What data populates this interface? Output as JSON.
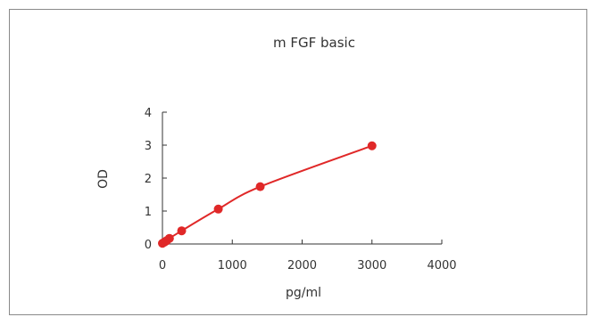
{
  "chart_data": {
    "type": "scatter",
    "title": "m FGF basic",
    "xlabel": "pg/ml",
    "ylabel": "OD",
    "xlim": [
      0,
      4000
    ],
    "ylim": [
      0,
      4
    ],
    "xticks": [
      "0",
      "1000",
      "2000",
      "3000",
      "4000"
    ],
    "yticks": [
      "0",
      "1",
      "2",
      "3",
      "4"
    ],
    "grid": false,
    "colors": {
      "series": "#e02828",
      "axis": "#333333",
      "frame": "#8a8a8a"
    },
    "series": [
      {
        "points": [
          {
            "x": 0,
            "y": 0.02
          },
          {
            "x": 30,
            "y": 0.06
          },
          {
            "x": 60,
            "y": 0.1
          },
          {
            "x": 100,
            "y": 0.17
          },
          {
            "x": 275,
            "y": 0.4
          },
          {
            "x": 800,
            "y": 1.06
          },
          {
            "x": 1400,
            "y": 1.74
          },
          {
            "x": 3000,
            "y": 2.98
          }
        ]
      }
    ]
  }
}
